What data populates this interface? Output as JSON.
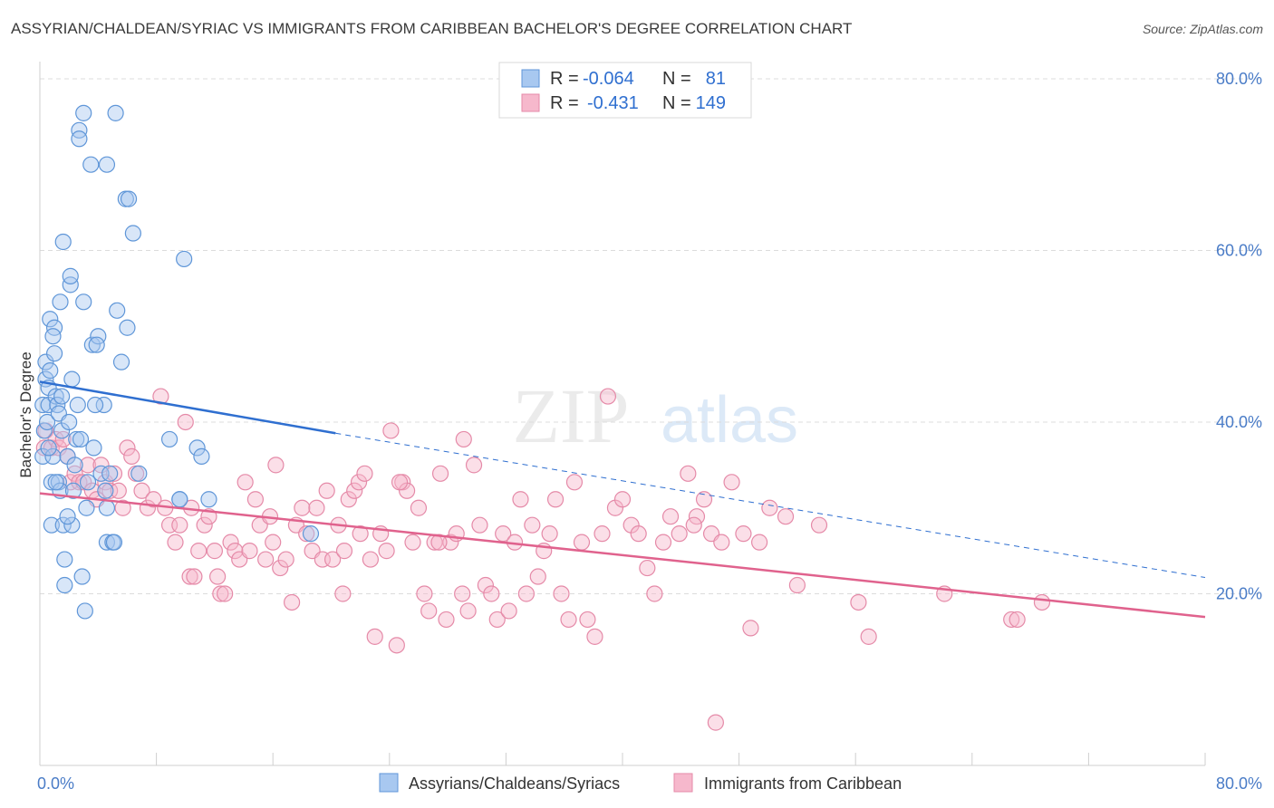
{
  "header": {
    "title": "ASSYRIAN/CHALDEAN/SYRIAC VS IMMIGRANTS FROM CARIBBEAN BACHELOR'S DEGREE CORRELATION CHART",
    "source": "Source: ZipAtlas.com"
  },
  "watermark": {
    "zip": "ZIP",
    "atlas": "atlas"
  },
  "legend_top": {
    "rows": [
      {
        "r_label": "R =",
        "r_value": "-0.064",
        "n_label": "N =",
        "n_value": "81"
      },
      {
        "r_label": "R =",
        "r_value": "-0.431",
        "n_label": "N =",
        "n_value": "149"
      }
    ]
  },
  "legend_bottom": {
    "items": [
      {
        "label": "Assyrians/Chaldeans/Syriacs"
      },
      {
        "label": "Immigrants from Caribbean"
      }
    ]
  },
  "colors": {
    "blue_fill": "#a8c8f0",
    "blue_stroke": "#5f96d8",
    "blue_line": "#2f6fd0",
    "pink_fill": "#f6b8cc",
    "pink_stroke": "#e58aa8",
    "pink_line": "#e0628d",
    "tick_text": "#4a7cc7"
  },
  "chart_data": {
    "type": "scatter",
    "ylabel": "Bachelor's Degree",
    "x_tick_labels": [
      "0.0%",
      "80.0%"
    ],
    "y_tick_labels": [
      "80.0%",
      "60.0%",
      "40.0%",
      "20.0%"
    ],
    "xlim": [
      0,
      80
    ],
    "ylim": [
      0,
      82
    ],
    "y_grid": [
      20,
      40,
      60,
      80
    ],
    "grid": true,
    "series": [
      {
        "name": "Assyrians/Chaldeans/Syriacs",
        "color": "blue",
        "points": [
          [
            0.2,
            42
          ],
          [
            0.2,
            36
          ],
          [
            0.3,
            39
          ],
          [
            0.4,
            47
          ],
          [
            0.4,
            45
          ],
          [
            0.5,
            40
          ],
          [
            0.6,
            44
          ],
          [
            0.6,
            42
          ],
          [
            0.7,
            46
          ],
          [
            0.7,
            52
          ],
          [
            0.8,
            28
          ],
          [
            0.8,
            33
          ],
          [
            0.9,
            36
          ],
          [
            1.0,
            48
          ],
          [
            1.0,
            51
          ],
          [
            1.1,
            43
          ],
          [
            1.2,
            42
          ],
          [
            1.3,
            41
          ],
          [
            1.3,
            33
          ],
          [
            1.4,
            54
          ],
          [
            1.4,
            32
          ],
          [
            1.5,
            39
          ],
          [
            1.5,
            43
          ],
          [
            1.6,
            61
          ],
          [
            1.6,
            28
          ],
          [
            1.7,
            24
          ],
          [
            1.7,
            21
          ],
          [
            1.9,
            36
          ],
          [
            2.0,
            40
          ],
          [
            2.1,
            56
          ],
          [
            2.1,
            57
          ],
          [
            2.2,
            45
          ],
          [
            2.2,
            28
          ],
          [
            2.5,
            38
          ],
          [
            2.6,
            42
          ],
          [
            2.7,
            74
          ],
          [
            2.7,
            73
          ],
          [
            2.9,
            22
          ],
          [
            3.0,
            76
          ],
          [
            3.0,
            54
          ],
          [
            3.1,
            18
          ],
          [
            3.2,
            30
          ],
          [
            3.3,
            33
          ],
          [
            3.5,
            70
          ],
          [
            3.6,
            49
          ],
          [
            3.7,
            37
          ],
          [
            4.0,
            50
          ],
          [
            4.2,
            34
          ],
          [
            4.4,
            42
          ],
          [
            4.6,
            26
          ],
          [
            4.6,
            30
          ],
          [
            4.6,
            70
          ],
          [
            4.8,
            34
          ],
          [
            5.0,
            26
          ],
          [
            5.2,
            76
          ],
          [
            5.3,
            53
          ],
          [
            5.6,
            47
          ],
          [
            5.9,
            66
          ],
          [
            6.1,
            66
          ],
          [
            6.4,
            62
          ],
          [
            6.8,
            34
          ],
          [
            8.9,
            38
          ],
          [
            9.6,
            31
          ],
          [
            9.6,
            31
          ],
          [
            9.9,
            59
          ],
          [
            10.8,
            37
          ],
          [
            11.1,
            36
          ],
          [
            11.6,
            31
          ],
          [
            18.6,
            27
          ],
          [
            5.1,
            26
          ],
          [
            4.5,
            32
          ],
          [
            3.8,
            42
          ],
          [
            2.3,
            32
          ],
          [
            1.9,
            29
          ],
          [
            2.4,
            35
          ],
          [
            0.9,
            50
          ],
          [
            1.1,
            33
          ],
          [
            6.0,
            51
          ],
          [
            3.9,
            49
          ],
          [
            2.8,
            38
          ],
          [
            0.6,
            37
          ]
        ]
      },
      {
        "name": "Immigrants from Caribbean",
        "color": "pink",
        "points": [
          [
            0.3,
            37
          ],
          [
            0.4,
            39
          ],
          [
            0.8,
            37
          ],
          [
            1.1,
            38
          ],
          [
            1.3,
            37
          ],
          [
            1.6,
            38
          ],
          [
            1.9,
            36
          ],
          [
            2.1,
            33
          ],
          [
            2.4,
            34
          ],
          [
            2.7,
            33
          ],
          [
            3.0,
            33
          ],
          [
            3.3,
            35
          ],
          [
            3.6,
            32
          ],
          [
            3.9,
            31
          ],
          [
            4.2,
            35
          ],
          [
            4.5,
            33
          ],
          [
            4.8,
            32
          ],
          [
            5.1,
            34
          ],
          [
            5.4,
            32
          ],
          [
            5.7,
            30
          ],
          [
            6.0,
            37
          ],
          [
            6.3,
            36
          ],
          [
            6.6,
            34
          ],
          [
            7.0,
            32
          ],
          [
            7.4,
            30
          ],
          [
            7.8,
            31
          ],
          [
            8.3,
            43
          ],
          [
            8.6,
            30
          ],
          [
            8.9,
            28
          ],
          [
            9.3,
            26
          ],
          [
            9.6,
            28
          ],
          [
            10.0,
            40
          ],
          [
            10.3,
            22
          ],
          [
            10.6,
            22
          ],
          [
            10.9,
            25
          ],
          [
            11.3,
            28
          ],
          [
            11.6,
            29
          ],
          [
            12.0,
            25
          ],
          [
            12.4,
            20
          ],
          [
            12.7,
            20
          ],
          [
            13.1,
            26
          ],
          [
            13.4,
            25
          ],
          [
            13.7,
            24
          ],
          [
            14.1,
            33
          ],
          [
            14.4,
            25
          ],
          [
            14.8,
            31
          ],
          [
            15.1,
            28
          ],
          [
            15.5,
            24
          ],
          [
            15.8,
            29
          ],
          [
            16.2,
            35
          ],
          [
            16.5,
            23
          ],
          [
            16.9,
            24
          ],
          [
            17.3,
            19
          ],
          [
            17.6,
            28
          ],
          [
            18.0,
            30
          ],
          [
            18.3,
            27
          ],
          [
            18.7,
            25
          ],
          [
            19.0,
            30
          ],
          [
            19.4,
            24
          ],
          [
            19.7,
            32
          ],
          [
            20.1,
            24
          ],
          [
            20.5,
            28
          ],
          [
            20.9,
            25
          ],
          [
            21.2,
            31
          ],
          [
            21.6,
            32
          ],
          [
            21.9,
            33
          ],
          [
            22.3,
            34
          ],
          [
            22.7,
            24
          ],
          [
            23.0,
            15
          ],
          [
            23.4,
            27
          ],
          [
            23.8,
            25
          ],
          [
            24.1,
            39
          ],
          [
            24.5,
            14
          ],
          [
            24.9,
            33
          ],
          [
            25.2,
            32
          ],
          [
            25.6,
            26
          ],
          [
            26.0,
            30
          ],
          [
            26.4,
            20
          ],
          [
            26.7,
            18
          ],
          [
            27.1,
            26
          ],
          [
            27.5,
            34
          ],
          [
            27.9,
            17
          ],
          [
            28.2,
            26
          ],
          [
            28.6,
            27
          ],
          [
            29.0,
            20
          ],
          [
            29.4,
            18
          ],
          [
            29.8,
            35
          ],
          [
            30.2,
            28
          ],
          [
            30.6,
            21
          ],
          [
            31.0,
            20
          ],
          [
            31.4,
            17
          ],
          [
            31.8,
            27
          ],
          [
            32.2,
            18
          ],
          [
            32.6,
            26
          ],
          [
            33.0,
            31
          ],
          [
            33.4,
            20
          ],
          [
            33.8,
            28
          ],
          [
            34.2,
            22
          ],
          [
            34.6,
            25
          ],
          [
            35.0,
            27
          ],
          [
            35.4,
            31
          ],
          [
            35.8,
            20
          ],
          [
            36.3,
            17
          ],
          [
            36.7,
            33
          ],
          [
            37.2,
            26
          ],
          [
            37.6,
            17
          ],
          [
            38.1,
            15
          ],
          [
            38.6,
            27
          ],
          [
            39.0,
            43
          ],
          [
            39.5,
            30
          ],
          [
            40.0,
            31
          ],
          [
            40.6,
            28
          ],
          [
            41.1,
            27
          ],
          [
            41.7,
            23
          ],
          [
            42.2,
            20
          ],
          [
            42.8,
            26
          ],
          [
            43.3,
            29
          ],
          [
            43.9,
            27
          ],
          [
            44.5,
            34
          ],
          [
            45.1,
            29
          ],
          [
            45.6,
            31
          ],
          [
            46.1,
            27
          ],
          [
            46.8,
            26
          ],
          [
            47.5,
            33
          ],
          [
            48.3,
            27
          ],
          [
            48.8,
            16
          ],
          [
            49.4,
            26
          ],
          [
            50.1,
            30
          ],
          [
            51.2,
            29
          ],
          [
            52.0,
            21
          ],
          [
            53.5,
            28
          ],
          [
            56.2,
            19
          ],
          [
            56.9,
            15
          ],
          [
            62.1,
            20
          ],
          [
            66.7,
            17
          ],
          [
            67.1,
            17
          ],
          [
            68.8,
            19
          ],
          [
            46.4,
            5
          ],
          [
            27.4,
            26
          ],
          [
            29.1,
            38
          ],
          [
            22.0,
            27
          ],
          [
            20.8,
            20
          ],
          [
            24.7,
            33
          ],
          [
            12.2,
            22
          ],
          [
            16.0,
            26
          ],
          [
            10.4,
            30
          ],
          [
            44.9,
            28
          ]
        ]
      }
    ],
    "trend_lines": [
      {
        "series": "Assyrians/Chaldeans/Syriacs",
        "solid": [
          [
            0,
            44.7
          ],
          [
            20.3,
            38.7
          ]
        ],
        "dashed": [
          [
            20.3,
            38.7
          ],
          [
            80,
            21.9
          ]
        ]
      },
      {
        "series": "Immigrants from Caribbean",
        "solid": [
          [
            0,
            31.7
          ],
          [
            80,
            17.3
          ]
        ]
      }
    ]
  }
}
